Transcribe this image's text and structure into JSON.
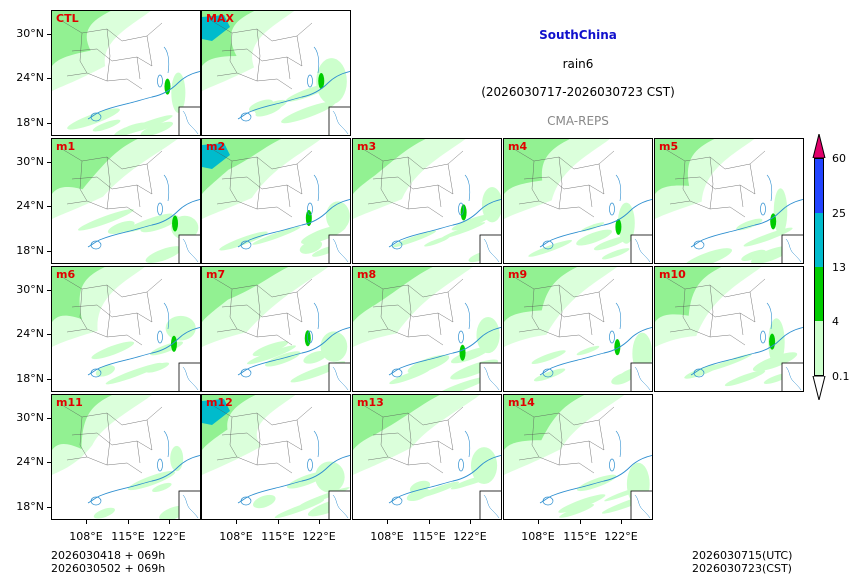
{
  "header": {
    "region": "SouthChina",
    "variable": "rain6",
    "period": "(2026030717-2026030723 CST)",
    "system": "CMA-REPS"
  },
  "panels": [
    "CTL",
    "MAX",
    "m1",
    "m2",
    "m3",
    "m4",
    "m5",
    "m6",
    "m7",
    "m8",
    "m9",
    "m10",
    "m11",
    "m12",
    "m13",
    "m14"
  ],
  "axes": {
    "lat_ticks": [
      "30°N",
      "24°N",
      "18°N"
    ],
    "lon_ticks": [
      "108°E",
      "115°E",
      "122°E"
    ]
  },
  "colorbar": {
    "levels": [
      "0.1",
      "4",
      "13",
      "25",
      "60"
    ],
    "colors": [
      "#ccffcc",
      "#00cc00",
      "#00bbcc",
      "#2244ff",
      "#e0006a"
    ]
  },
  "footer": {
    "init_utc": "2026030418  +  069h",
    "init_cst": "2026030502  +  069h",
    "valid_utc": "2026030715(UTC)",
    "valid_cst": "2026030723(CST)"
  }
}
